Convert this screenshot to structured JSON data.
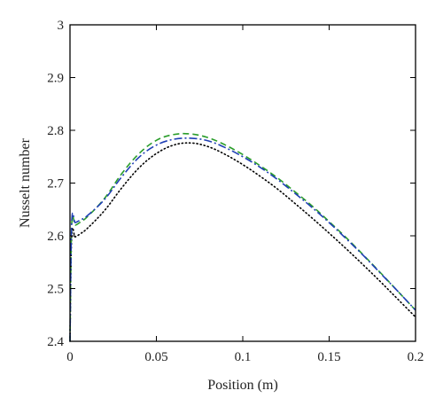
{
  "chart_data": {
    "type": "line",
    "title": "",
    "xlabel": "Position (m)",
    "ylabel": "Nusselt number",
    "xlim": [
      0,
      0.2
    ],
    "ylim": [
      2.4,
      3.0
    ],
    "x_ticks": [
      0,
      0.05,
      0.1,
      0.15,
      0.2
    ],
    "y_ticks": [
      2.4,
      2.5,
      2.6,
      2.7,
      2.8,
      2.9,
      3.0
    ],
    "x_tick_labels": [
      "0",
      "0.05",
      "0.1",
      "0.15",
      "0.2"
    ],
    "y_tick_labels": [
      "2.4",
      "2.5",
      "2.6",
      "2.7",
      "2.8",
      "2.9",
      "3"
    ],
    "grid": false,
    "legend": "none",
    "series": [
      {
        "color": "#000000",
        "dash": "dotted",
        "x": [
          0,
          0.001,
          0.003,
          0.006,
          0.01,
          0.02,
          0.03,
          0.04,
          0.05,
          0.06,
          0.07,
          0.08,
          0.09,
          0.1,
          0.11,
          0.12,
          0.13,
          0.14,
          0.15,
          0.16,
          0.17,
          0.18,
          0.19,
          0.2
        ],
        "y": [
          2.4,
          2.6,
          2.598,
          2.604,
          2.614,
          2.648,
          2.691,
          2.729,
          2.756,
          2.772,
          2.776,
          2.769,
          2.754,
          2.735,
          2.713,
          2.689,
          2.662,
          2.634,
          2.605,
          2.575,
          2.544,
          2.512,
          2.479,
          2.446
        ]
      },
      {
        "color": "#2a9d2a",
        "dash": "dashed",
        "x": [
          0,
          0.001,
          0.003,
          0.006,
          0.01,
          0.02,
          0.03,
          0.04,
          0.05,
          0.06,
          0.07,
          0.08,
          0.09,
          0.1,
          0.11,
          0.12,
          0.13,
          0.14,
          0.15,
          0.16,
          0.17,
          0.18,
          0.19,
          0.2
        ],
        "y": [
          2.4,
          2.622,
          2.62,
          2.626,
          2.636,
          2.671,
          2.718,
          2.756,
          2.781,
          2.792,
          2.793,
          2.786,
          2.772,
          2.754,
          2.733,
          2.71,
          2.684,
          2.657,
          2.627,
          2.596,
          2.563,
          2.529,
          2.494,
          2.459
        ]
      },
      {
        "color": "#1f3fb5",
        "dash": "dashdot",
        "x": [
          0,
          0.001,
          0.003,
          0.006,
          0.01,
          0.02,
          0.03,
          0.04,
          0.05,
          0.06,
          0.07,
          0.08,
          0.09,
          0.1,
          0.11,
          0.12,
          0.13,
          0.14,
          0.15,
          0.16,
          0.17,
          0.18,
          0.19,
          0.2
        ],
        "y": [
          2.4,
          2.626,
          2.625,
          2.63,
          2.638,
          2.669,
          2.712,
          2.749,
          2.772,
          2.783,
          2.785,
          2.78,
          2.767,
          2.75,
          2.73,
          2.707,
          2.681,
          2.654,
          2.625,
          2.594,
          2.562,
          2.528,
          2.494,
          2.459
        ]
      }
    ]
  }
}
